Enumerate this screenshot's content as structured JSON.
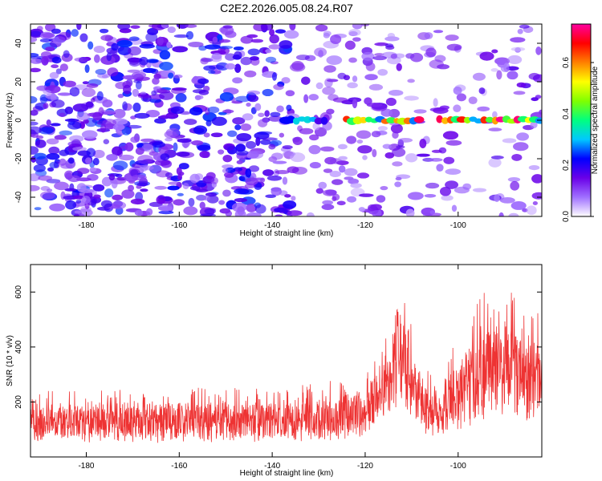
{
  "title": "C2E2.2026.005.08.24.R07",
  "chart_data": [
    {
      "type": "heatmap",
      "panel": "spectrogram",
      "xlabel": "Height of straight line (km)",
      "ylabel": "Frequency (Hz)",
      "xlim": [
        -192,
        -82
      ],
      "ylim": [
        -50,
        50
      ],
      "xticks": [
        -180,
        -160,
        -140,
        -120,
        -100
      ],
      "yticks": [
        -40,
        -20,
        0,
        20,
        40
      ],
      "colorbar": {
        "label": "Normalized spectral amplitude",
        "range": [
          0.0,
          0.75
        ],
        "ticks": [
          "0.0",
          "0.2",
          "0.4",
          "0.6"
        ],
        "colors": [
          "#ffffff",
          "#a070ff",
          "#6a00e8",
          "#0000ff",
          "#00c8ff",
          "#00ff80",
          "#80ff00",
          "#ffff00",
          "#ff8000",
          "#ff0000",
          "#ff00a0"
        ]
      },
      "signal_track": {
        "frequency_hz": 0,
        "x_start": -136,
        "x_end": -82,
        "segments": [
          {
            "x_from": -136,
            "x_to": -128,
            "peak": 0.35
          },
          {
            "x_from": -124,
            "x_to": -108,
            "peak": 0.72
          },
          {
            "x_from": -104,
            "x_to": -82,
            "peak": 0.75
          }
        ]
      },
      "noise": {
        "x_dense_until": -136,
        "peak": 0.25
      }
    },
    {
      "type": "line",
      "panel": "snr",
      "xlabel": "Height of straight line (km)",
      "ylabel": "SNR (10 * v/v)",
      "xlim": [
        -192,
        -82
      ],
      "ylim": [
        0,
        700
      ],
      "xticks": [
        -180,
        -160,
        -140,
        -120,
        -100
      ],
      "yticks": [
        200,
        400,
        600
      ],
      "color": "#ee3333",
      "envelope": [
        {
          "x": -192,
          "low": 30,
          "high": 240
        },
        {
          "x": -140,
          "low": 30,
          "high": 260
        },
        {
          "x": -120,
          "low": 40,
          "high": 290
        },
        {
          "x": -115,
          "low": 120,
          "high": 470
        },
        {
          "x": -113,
          "low": 150,
          "high": 690
        },
        {
          "x": -109,
          "low": 80,
          "high": 430
        },
        {
          "x": -106,
          "low": 40,
          "high": 300
        },
        {
          "x": -100,
          "low": 60,
          "high": 420
        },
        {
          "x": -96,
          "low": 60,
          "high": 570
        },
        {
          "x": -92,
          "low": 100,
          "high": 660
        },
        {
          "x": -88,
          "low": 80,
          "high": 600
        },
        {
          "x": -82,
          "low": 60,
          "high": 520
        }
      ]
    }
  ]
}
